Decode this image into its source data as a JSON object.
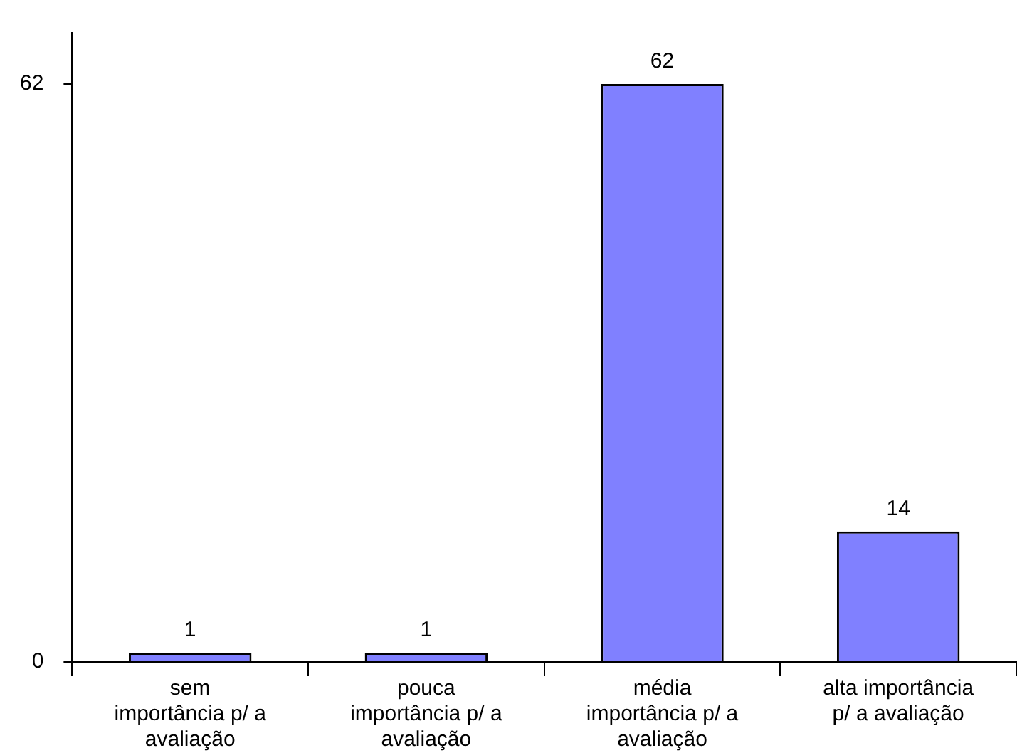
{
  "chart_data": {
    "type": "bar",
    "categories": [
      "sem\nimportância p/ a\navaliação",
      "pouca\nimportância p/ a\navaliação",
      "média\nimportância p/ a\navaliação",
      "alta importância\np/ a avaliação"
    ],
    "values": [
      1,
      1,
      62,
      14
    ],
    "color": "#8080ff",
    "ylim": [
      0,
      67.5
    ],
    "yticks": [
      0,
      62
    ],
    "grid": false,
    "data_labels": true
  }
}
